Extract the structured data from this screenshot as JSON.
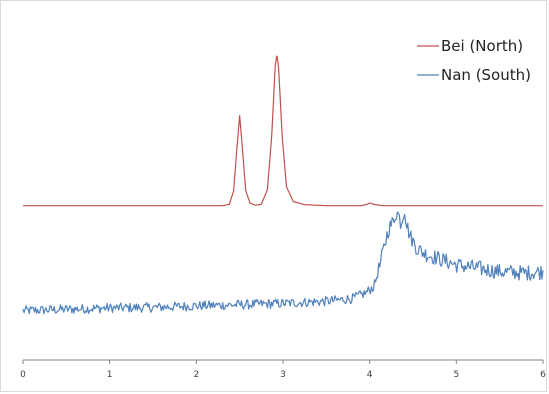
{
  "chart_data": {
    "type": "line",
    "title": "",
    "xlabel": "",
    "ylabel": "",
    "xlim": [
      0,
      6
    ],
    "xticks": [
      "0",
      "1",
      "2",
      "3",
      "4",
      "5",
      "6"
    ],
    "y_axis_visible": false,
    "grid": false,
    "legend_position": "top-right",
    "series": [
      {
        "name": "Bei (North)",
        "color": "#c0504d",
        "baseline": 0,
        "points": [
          [
            0.0,
            0.0
          ],
          [
            2.3,
            0.0
          ],
          [
            2.38,
            0.05
          ],
          [
            2.43,
            0.55
          ],
          [
            2.47,
            2.2
          ],
          [
            2.5,
            3.35
          ],
          [
            2.53,
            2.2
          ],
          [
            2.57,
            0.55
          ],
          [
            2.62,
            0.1
          ],
          [
            2.68,
            0.02
          ],
          [
            2.75,
            0.05
          ],
          [
            2.82,
            0.6
          ],
          [
            2.87,
            2.6
          ],
          [
            2.91,
            5.2
          ],
          [
            2.93,
            5.6
          ],
          [
            2.95,
            5.1
          ],
          [
            2.99,
            2.6
          ],
          [
            3.04,
            0.7
          ],
          [
            3.12,
            0.15
          ],
          [
            3.25,
            0.04
          ],
          [
            3.5,
            0.0
          ],
          [
            3.9,
            0.0
          ],
          [
            3.97,
            0.05
          ],
          [
            4.0,
            0.1
          ],
          [
            4.05,
            0.05
          ],
          [
            4.15,
            0.0
          ],
          [
            6.0,
            0.0
          ]
        ]
      },
      {
        "name": "Nan (South)",
        "color": "#4f81bd",
        "noise_amplitude": 0.18,
        "points": [
          [
            0.0,
            -3.9
          ],
          [
            0.5,
            -3.85
          ],
          [
            1.0,
            -3.8
          ],
          [
            1.5,
            -3.78
          ],
          [
            2.0,
            -3.72
          ],
          [
            2.5,
            -3.68
          ],
          [
            3.0,
            -3.63
          ],
          [
            3.5,
            -3.55
          ],
          [
            3.8,
            -3.45
          ],
          [
            3.95,
            -3.25
          ],
          [
            4.05,
            -3.0
          ],
          [
            4.12,
            -2.2
          ],
          [
            4.18,
            -1.35
          ],
          [
            4.22,
            -0.85
          ],
          [
            4.28,
            -0.55
          ],
          [
            4.3,
            -0.25
          ],
          [
            4.33,
            -0.3
          ],
          [
            4.36,
            -0.65
          ],
          [
            4.38,
            -0.45
          ],
          [
            4.4,
            -0.05
          ],
          [
            4.43,
            -0.75
          ],
          [
            4.47,
            -1.15
          ],
          [
            4.55,
            -1.6
          ],
          [
            4.65,
            -1.8
          ],
          [
            5.0,
            -2.2
          ],
          [
            5.3,
            -2.35
          ],
          [
            5.5,
            -2.45
          ],
          [
            5.8,
            -2.5
          ],
          [
            6.0,
            -2.45
          ]
        ]
      }
    ]
  }
}
